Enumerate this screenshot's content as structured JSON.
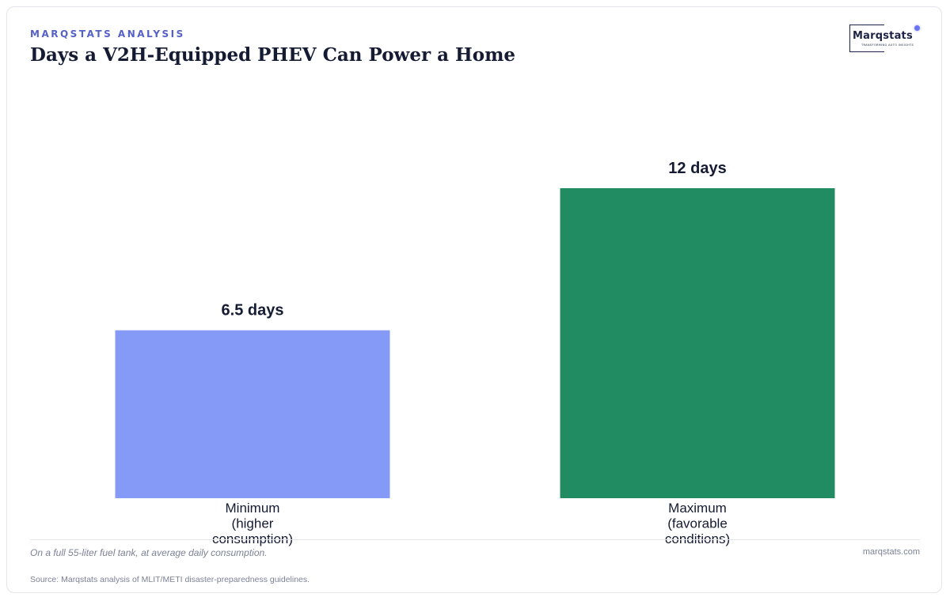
{
  "header": {
    "eyebrow": "MARQSTATS ANALYSIS",
    "title": "Days a V2H-Equipped PHEV Can Power a Home"
  },
  "logo": {
    "wordmark": "Marqstats",
    "tagline": "TRANSFORMING AUTO INSIGHTS"
  },
  "chart_data": {
    "type": "bar",
    "categories": [
      [
        "Minimum",
        "(higher",
        "consumption)"
      ],
      [
        "Maximum",
        "(favorable",
        "conditions)"
      ]
    ],
    "values": [
      6.5,
      12
    ],
    "value_labels": [
      "6.5 days",
      "12 days"
    ],
    "colors": [
      "#8599f6",
      "#218b62"
    ],
    "ylim": [
      0,
      12
    ],
    "grid": false,
    "legend": "none"
  },
  "footer": {
    "note": "On a full 55-liter fuel tank, at average daily consumption.",
    "site": "marqstats.com",
    "source": "Source: Marqstats analysis of MLIT/METI disaster-preparedness guidelines."
  }
}
